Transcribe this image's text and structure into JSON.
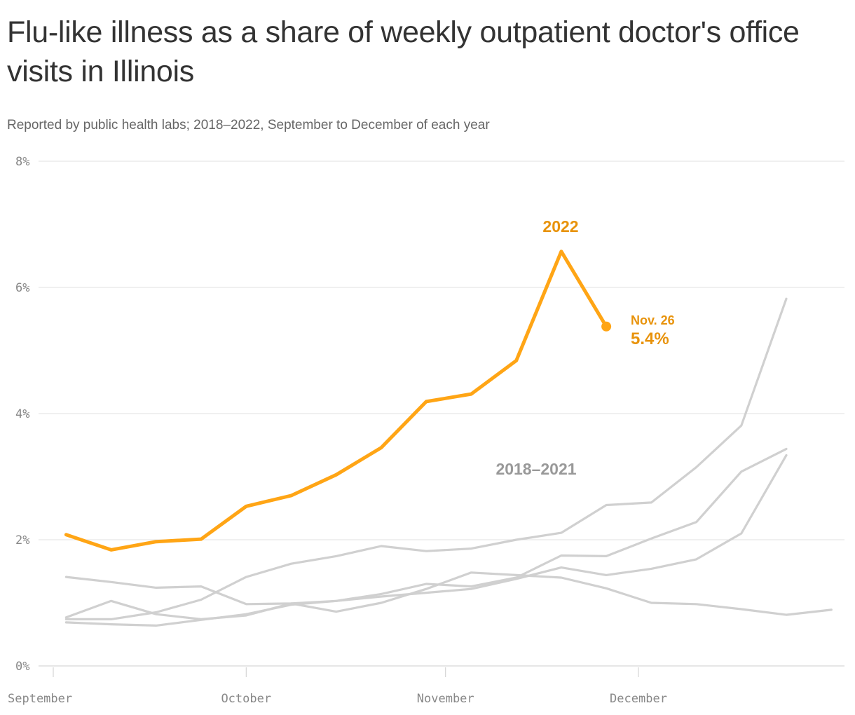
{
  "chart_data": {
    "type": "line",
    "title": "Flu-like illness as a share of weekly outpatient doctor's office visits in Illinois",
    "subtitle": "Reported by public health labs; 2018–2022, September to December of each year",
    "xlabel": "",
    "ylabel": "",
    "x_ticks": [
      {
        "label": "September",
        "date": "09-01"
      },
      {
        "label": "October",
        "date": "10-01"
      },
      {
        "label": "November",
        "date": "11-01"
      },
      {
        "label": "December",
        "date": "12-01"
      }
    ],
    "y_ticks": [
      0,
      2,
      4,
      6,
      8
    ],
    "y_tick_labels": [
      "0%",
      "2%",
      "4%",
      "6%",
      "8%"
    ],
    "ylim": [
      0,
      8
    ],
    "grid": "horizontal",
    "x_dates": [
      "09-03",
      "09-10",
      "09-17",
      "09-24",
      "10-01",
      "10-08",
      "10-15",
      "10-22",
      "10-29",
      "11-05",
      "11-12",
      "11-19",
      "11-26",
      "12-03",
      "12-10",
      "12-17",
      "12-24",
      "12-31"
    ],
    "series": [
      {
        "group": "2018–2021",
        "color": "#d0d0d0",
        "values": [
          1.41,
          1.33,
          1.24,
          1.26,
          0.98,
          0.99,
          1.03,
          1.1,
          1.16,
          1.22,
          1.38,
          1.56,
          1.44,
          1.54,
          1.69,
          2.1,
          3.34,
          null
        ]
      },
      {
        "group": "2018–2021",
        "color": "#d0d0d0",
        "values": [
          0.77,
          1.03,
          0.82,
          0.74,
          0.8,
          0.99,
          0.86,
          1.0,
          1.22,
          1.48,
          1.44,
          1.4,
          1.23,
          1.0,
          0.98,
          0.9,
          0.81,
          0.89
        ]
      },
      {
        "group": "2018–2021",
        "color": "#d0d0d0",
        "values": [
          0.74,
          0.74,
          0.85,
          1.05,
          1.41,
          1.62,
          1.74,
          1.9,
          1.82,
          1.86,
          2.0,
          2.11,
          2.55,
          2.59,
          3.15,
          3.81,
          5.82,
          null
        ]
      },
      {
        "group": "2018–2021",
        "color": "#d0d0d0",
        "values": [
          0.69,
          0.66,
          0.64,
          0.73,
          0.82,
          0.97,
          1.03,
          1.14,
          1.3,
          1.26,
          1.4,
          1.75,
          1.74,
          2.02,
          2.28,
          3.08,
          3.44,
          null
        ]
      },
      {
        "name": "2022",
        "color": "#ffa515",
        "values": [
          2.08,
          1.84,
          1.97,
          2.01,
          2.53,
          2.7,
          3.03,
          3.46,
          4.19,
          4.31,
          4.84,
          6.57,
          5.38,
          null,
          null,
          null,
          null,
          null
        ]
      }
    ],
    "annotations": {
      "series_2022_label": "2022",
      "series_past_label": "2018–2021",
      "last_point_date": "Nov. 26",
      "last_point_value": "5.4%"
    },
    "colors": {
      "highlight": "#ffa515",
      "highlight_text": "#e8930c",
      "past": "#d0d0d0",
      "past_text": "#999999",
      "grid": "#e0e0e0"
    }
  }
}
